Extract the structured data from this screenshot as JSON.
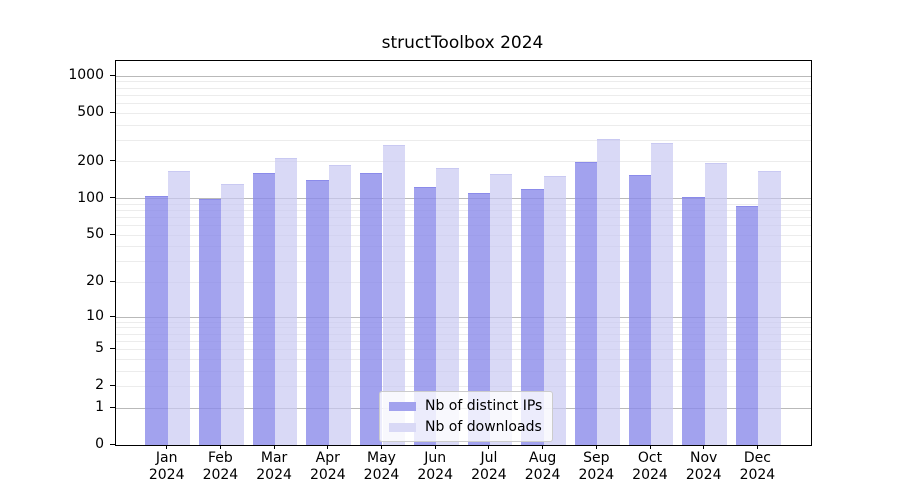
{
  "figure": {
    "background": "#ffffff"
  },
  "chart_data": {
    "type": "bar",
    "title": "structToolbox 2024",
    "categories": [
      "Jan",
      "Feb",
      "Mar",
      "Apr",
      "May",
      "Jun",
      "Jul",
      "Aug",
      "Sep",
      "Oct",
      "Nov",
      "Dec"
    ],
    "category_year": "2024",
    "series": [
      {
        "name": "Nb of distinct IPs",
        "color": "#a2a2ee",
        "alpha": 0.8,
        "values": [
          103,
          97,
          160,
          140,
          158,
          122,
          110,
          117,
          197,
          153,
          102,
          85
        ]
      },
      {
        "name": "Nb of downloads",
        "color": "#d9d9f6",
        "alpha": 0.7,
        "values": [
          165,
          130,
          212,
          184,
          268,
          176,
          157,
          150,
          305,
          280,
          191,
          165
        ]
      }
    ],
    "xlabel": "",
    "ylabel": "",
    "y_axis": {
      "scale": "log1p",
      "ticks": [
        0,
        1,
        2,
        5,
        10,
        20,
        50,
        100,
        200,
        500,
        1000
      ],
      "ylim": [
        0,
        1331
      ]
    },
    "gridlines": {
      "major": [
        1,
        10,
        100,
        1000
      ],
      "minor": [
        2,
        3,
        4,
        5,
        6,
        7,
        8,
        9,
        20,
        30,
        40,
        50,
        60,
        70,
        80,
        90,
        200,
        300,
        400,
        500,
        600,
        700,
        800,
        900
      ],
      "major_color": "#b9b9b9",
      "minor_color": "#ececec"
    },
    "legend": {
      "position": "inside-lower-center",
      "background": "#ffffff",
      "border_color": "#cccccc"
    },
    "spine_color": "#000000",
    "grid_on": true
  }
}
